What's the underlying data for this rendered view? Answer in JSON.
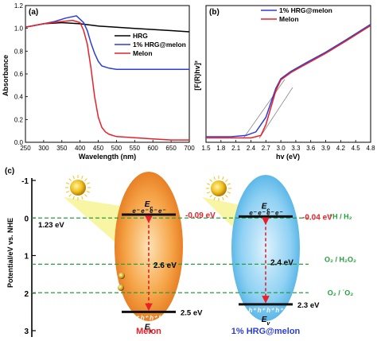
{
  "colors": {
    "hrg": "#000000",
    "hrg_melon": "#2b3fd6",
    "melon": "#e8202a",
    "redox": "#22a03a",
    "orange": "#f08a1e",
    "blue": "#6ec6f0",
    "dashed_red": "#e8202a"
  },
  "chart_data": [
    {
      "panel": "(a)",
      "type": "line",
      "xlabel": "Wavelength (nm)",
      "ylabel": "Absorbance",
      "xlim": [
        250,
        700
      ],
      "ylim": [
        0.0,
        1.2
      ],
      "xticks": [
        "250",
        "300",
        "350",
        "400",
        "450",
        "500",
        "550",
        "600",
        "650",
        "700"
      ],
      "yticks": [
        "0.0",
        "0.2",
        "0.4",
        "0.6",
        "0.8",
        "1.0",
        "1.2"
      ],
      "series": [
        {
          "name": "HRG",
          "x": [
            250,
            300,
            350,
            400,
            450,
            500,
            550,
            600,
            650,
            700
          ],
          "y": [
            1.01,
            1.04,
            1.05,
            1.04,
            1.02,
            1.01,
            1.0,
            0.99,
            0.98,
            0.97
          ]
        },
        {
          "name": "1% HRG@melon",
          "x": [
            250,
            300,
            330,
            360,
            390,
            410,
            420,
            430,
            440,
            450,
            460,
            480,
            500,
            550,
            600,
            650,
            700
          ],
          "y": [
            1.01,
            1.04,
            1.06,
            1.09,
            1.11,
            1.05,
            0.98,
            0.87,
            0.78,
            0.71,
            0.67,
            0.65,
            0.64,
            0.64,
            0.64,
            0.64,
            0.64
          ]
        },
        {
          "name": "Melon",
          "x": [
            250,
            300,
            350,
            380,
            400,
            410,
            420,
            430,
            440,
            450,
            460,
            470,
            480,
            500,
            550,
            600,
            650,
            700
          ],
          "y": [
            1.01,
            1.04,
            1.06,
            1.07,
            1.05,
            0.98,
            0.86,
            0.65,
            0.4,
            0.22,
            0.13,
            0.09,
            0.07,
            0.05,
            0.04,
            0.03,
            0.02,
            0.02
          ]
        }
      ]
    },
    {
      "panel": "(b)",
      "type": "line",
      "xlabel": "hv (eV)",
      "ylabel": "[F(R)hv]²",
      "xlim": [
        1.5,
        4.8
      ],
      "xticks": [
        "1.5",
        "1.8",
        "2.1",
        "2.4",
        "2.7",
        "3.0",
        "3.3",
        "3.6",
        "3.9",
        "4.2",
        "4.5",
        "4.8"
      ],
      "series": [
        {
          "name": "1% HRG@melon",
          "x": [
            1.5,
            2.0,
            2.3,
            2.5,
            2.7,
            2.8,
            2.9,
            3.0,
            3.2,
            3.5,
            3.9,
            4.3,
            4.8
          ],
          "y": [
            0.02,
            0.02,
            0.03,
            0.06,
            0.18,
            0.3,
            0.42,
            0.5,
            0.56,
            0.63,
            0.72,
            0.82,
            0.95
          ]
        },
        {
          "name": "Melon",
          "x": [
            1.5,
            2.0,
            2.4,
            2.6,
            2.7,
            2.8,
            2.9,
            3.0,
            3.2,
            3.5,
            3.9,
            4.3,
            4.8
          ],
          "y": [
            0.01,
            0.01,
            0.01,
            0.03,
            0.12,
            0.26,
            0.4,
            0.49,
            0.55,
            0.62,
            0.71,
            0.81,
            0.94
          ]
        }
      ],
      "annotations": [
        "2.4",
        "2.7"
      ]
    },
    {
      "panel": "(c)",
      "type": "diagram",
      "ylabel": "Potential/eV vs. NHE",
      "ylim": [
        -1,
        3
      ],
      "yticks": [
        "-1",
        "0",
        "1",
        "2",
        "3"
      ],
      "redox_levels": [
        {
          "label": "⁺H / H₂",
          "value": 0.0
        },
        {
          "label": "O₂ / H₂O₂",
          "value": 1.23
        },
        {
          "label": "O₂ / ˙O₂",
          "value": 1.99
        }
      ],
      "gap_label": "1.23 eV",
      "materials": [
        {
          "name": "Melon",
          "cb": -0.09,
          "vb": 2.5,
          "cb_label": "-0.09 eV",
          "vb_label": "2.5 eV",
          "gap": "2.6 eV"
        },
        {
          "name": "1% HRG@melon",
          "cb": -0.04,
          "vb": 2.3,
          "cb_label": "-0.04 eV",
          "vb_label": "2.3 eV",
          "gap": "2.4 eV"
        }
      ],
      "ec": "E",
      "ec_sub": "c",
      "ev": "E",
      "ev_sub": "v",
      "electrons": "e⁻ e⁻ e⁻ e⁻",
      "holes": "h⁺ h⁺ h⁺ h⁺"
    }
  ]
}
